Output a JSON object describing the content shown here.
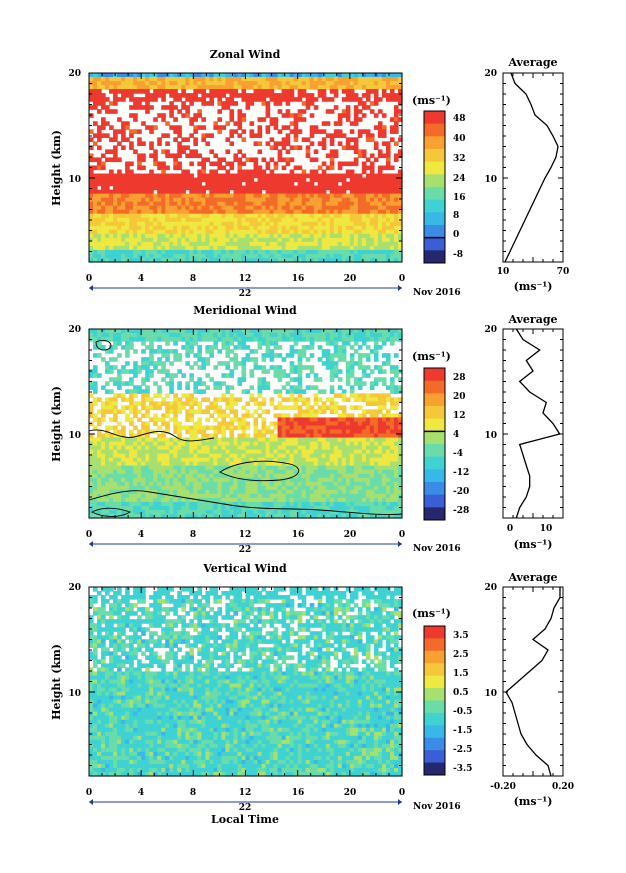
{
  "chart_data": [
    {
      "type": "heatmap",
      "title": "Zonal Wind",
      "ylabel": "Height (km)",
      "x_ticks": [
        "0",
        "4",
        "8",
        "12",
        "16",
        "20",
        "0"
      ],
      "y_ticks": [
        "20",
        "10"
      ],
      "date_label": "22",
      "date_suffix": "Nov 2016",
      "colorbar": {
        "unit": "(ms⁻¹)",
        "ticks": [
          "48",
          "40",
          "32",
          "24",
          "16",
          "8",
          "0",
          "-8"
        ],
        "colors": [
          "#ee3a2e",
          "#f46a28",
          "#f8a030",
          "#f4c838",
          "#eee840",
          "#a8e070",
          "#6adcaa",
          "#3ed2d2",
          "#38b8e8",
          "#3a8ce6",
          "#3a5ed6",
          "#26286e"
        ],
        "zero_index": 10
      },
      "profile": {
        "title": "Average",
        "x_ticks": [
          "10",
          "70"
        ],
        "xlim": [
          10,
          70
        ],
        "y_ticks": [
          "20",
          "10"
        ],
        "xlabel": "(ms⁻¹)",
        "heights": [
          2,
          3,
          4,
          5,
          6,
          7,
          8,
          9,
          10,
          11,
          12,
          13,
          14,
          15,
          16,
          17,
          18,
          19,
          20
        ],
        "values": [
          12,
          17,
          22,
          27,
          32,
          37,
          42,
          47,
          52,
          58,
          63,
          65,
          60,
          54,
          42,
          38,
          33,
          22,
          18
        ]
      }
    },
    {
      "type": "heatmap",
      "title": "Meridional Wind",
      "ylabel": "Height (km)",
      "x_ticks": [
        "0",
        "4",
        "8",
        "12",
        "16",
        "20",
        "0"
      ],
      "y_ticks": [
        "20",
        "10"
      ],
      "date_label": "22",
      "date_suffix": "Nov 2016",
      "colorbar": {
        "unit": "(ms⁻¹)",
        "ticks": [
          "28",
          "20",
          "12",
          "4",
          "-4",
          "-12",
          "-20",
          "-28"
        ],
        "colors": [
          "#ee3a2e",
          "#f46a28",
          "#f8a030",
          "#f4c838",
          "#eee840",
          "#a8e070",
          "#6adcaa",
          "#3ed2d2",
          "#38b8e8",
          "#3a8ce6",
          "#3a5ed6",
          "#26286e"
        ],
        "zero_index": 5
      },
      "profile": {
        "title": "Average",
        "x_ticks": [
          "0",
          "10"
        ],
        "xlim": [
          -3,
          15
        ],
        "y_ticks": [
          "20",
          "10"
        ],
        "xlabel": "(ms⁻¹)",
        "heights": [
          2,
          3,
          4,
          5,
          6,
          7,
          8,
          9,
          10,
          11,
          12,
          13,
          14,
          15,
          16,
          17,
          18,
          19,
          20
        ],
        "values": [
          1,
          2,
          4,
          5,
          5,
          4,
          3,
          2,
          14,
          12,
          9,
          10,
          5,
          2,
          6,
          4,
          8,
          3,
          1
        ]
      }
    },
    {
      "type": "heatmap",
      "title": "Vertical Wind",
      "ylabel": "Height (km)",
      "xlabel": "Local Time",
      "x_ticks": [
        "0",
        "4",
        "8",
        "12",
        "16",
        "20",
        "0"
      ],
      "y_ticks": [
        "20",
        "10"
      ],
      "date_label": "22",
      "date_suffix": "Nov 2016",
      "colorbar": {
        "unit": "(ms⁻¹)",
        "ticks": [
          "3.5",
          "2.5",
          "1.5",
          "0.5",
          "-0.5",
          "-1.5",
          "-2.5",
          "-3.5"
        ],
        "colors": [
          "#ee3a2e",
          "#f46a28",
          "#f8a030",
          "#f4c838",
          "#eee840",
          "#a8e070",
          "#6adcaa",
          "#3ed2d2",
          "#38b8e8",
          "#3a8ce6",
          "#3a5ed6",
          "#26286e"
        ],
        "zero_index": -1
      },
      "profile": {
        "title": "Average",
        "x_ticks": [
          "-0.20",
          "0.20"
        ],
        "xlim": [
          -0.2,
          0.2
        ],
        "y_ticks": [
          "20",
          "10"
        ],
        "xlabel": "(ms⁻¹)",
        "heights": [
          2,
          3,
          4,
          5,
          6,
          7,
          8,
          9,
          10,
          11,
          12,
          13,
          14,
          15,
          16,
          17,
          18,
          19,
          20
        ],
        "values": [
          0.12,
          0.1,
          0.02,
          -0.04,
          -0.08,
          -0.1,
          -0.12,
          -0.14,
          -0.18,
          -0.1,
          -0.02,
          0.06,
          0.1,
          0.0,
          0.08,
          0.12,
          0.14,
          0.18,
          0.18
        ]
      }
    }
  ]
}
